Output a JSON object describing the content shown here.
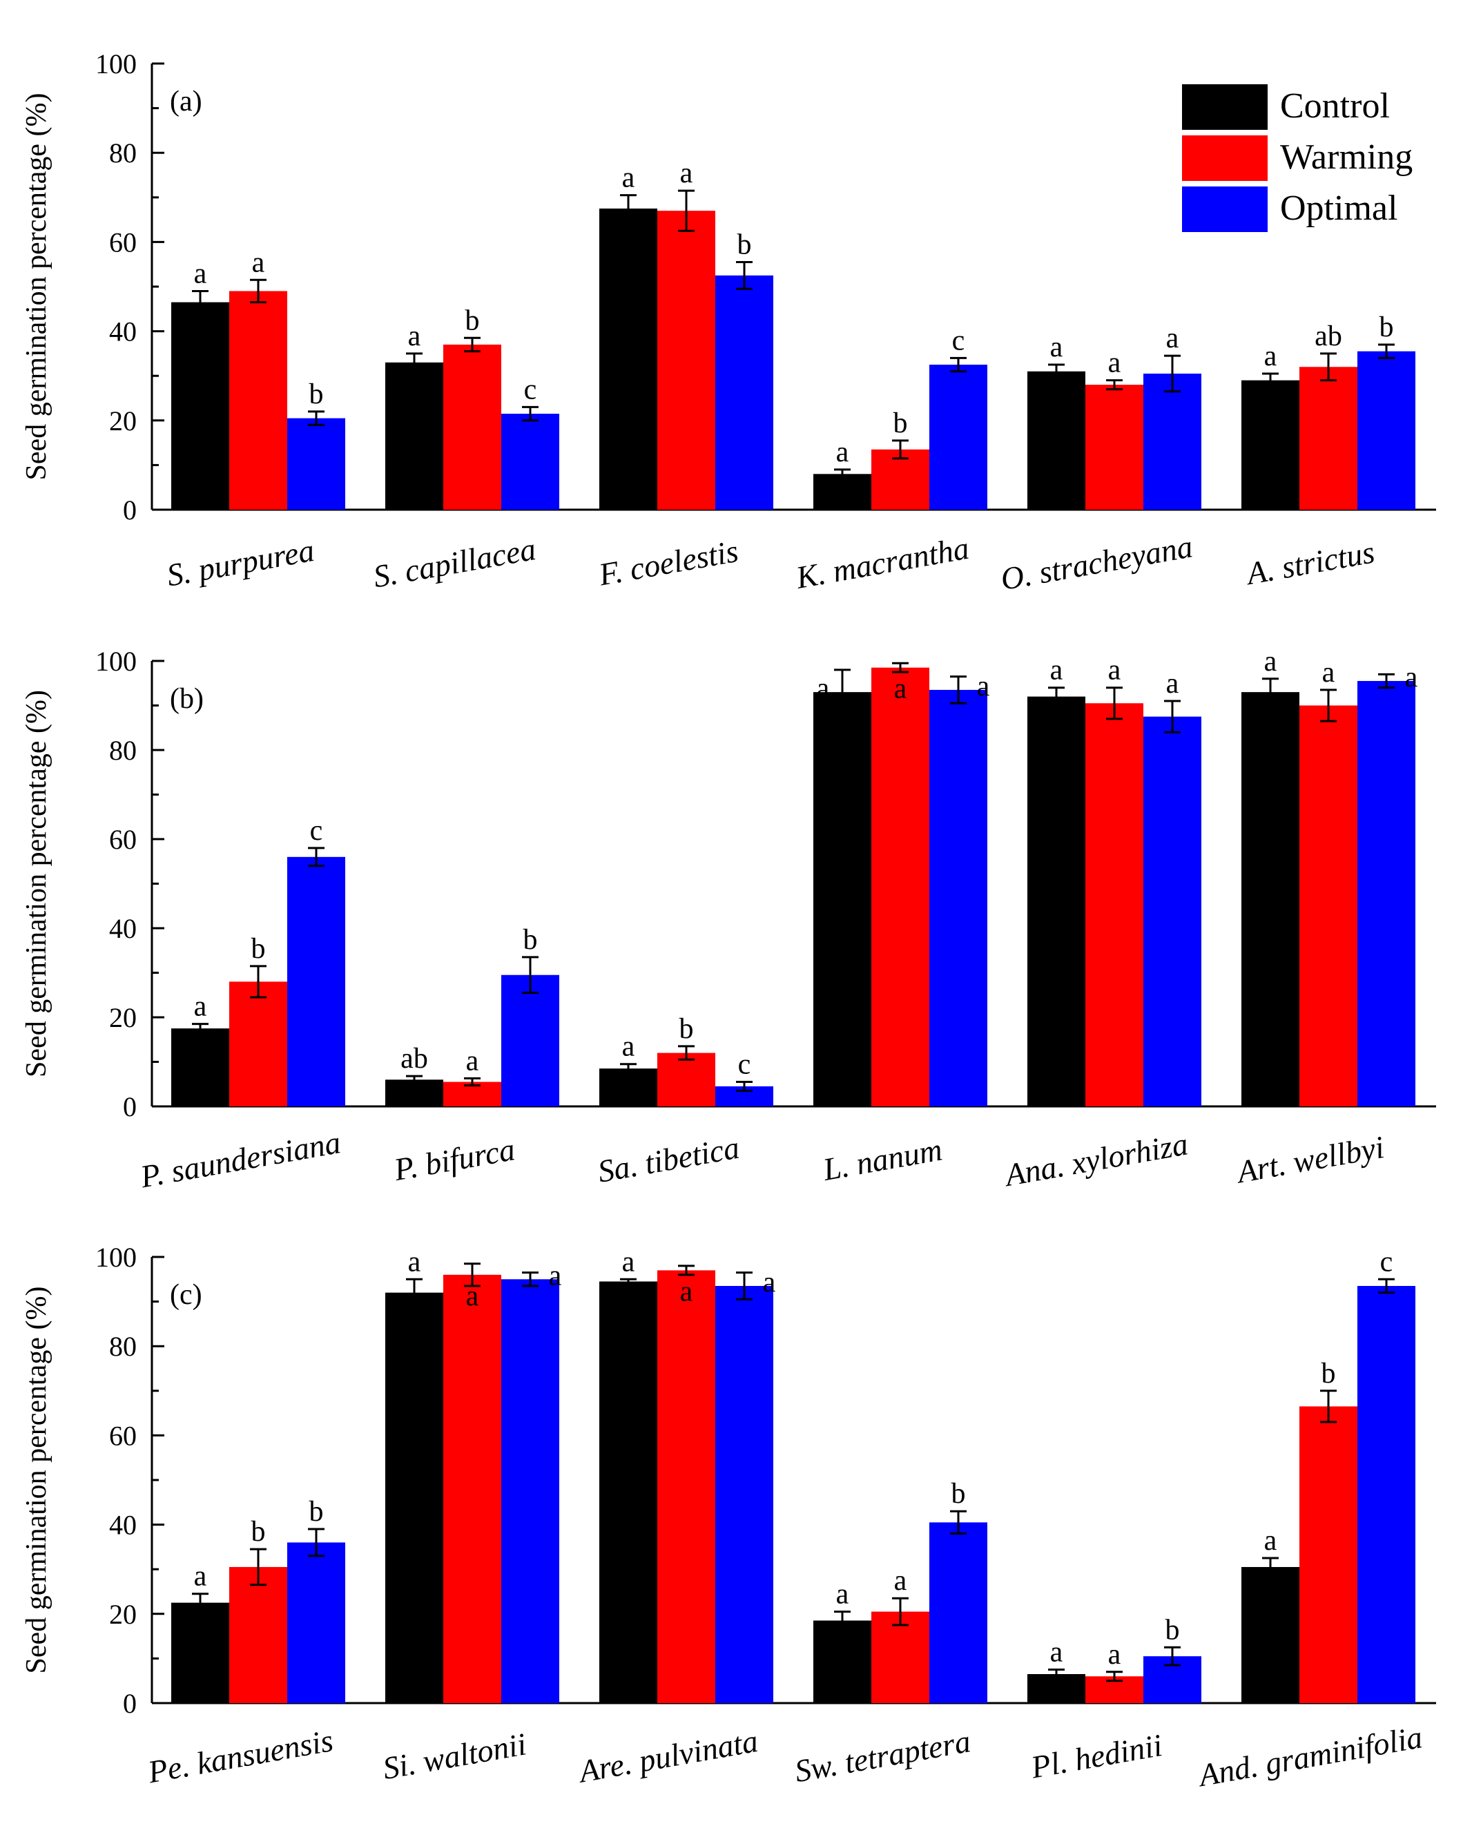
{
  "chart_data": [
    {
      "type": "bar",
      "panel_label": "(a)",
      "ylabel": "Seed germination percentage (%)",
      "ylim": [
        0,
        100
      ],
      "yticks": [
        0,
        20,
        40,
        60,
        80,
        100
      ],
      "categories": [
        "S. purpurea",
        "S. capillacea",
        "F. coelestis",
        "K. macrantha",
        "O. stracheyana",
        "A. strictus"
      ],
      "series": [
        {
          "name": "Control",
          "color": "#000000",
          "values": [
            46.5,
            33,
            67.5,
            8,
            31,
            29
          ],
          "errors": [
            2.5,
            2,
            3,
            1,
            1.5,
            1.5
          ],
          "letters": [
            "a",
            "a",
            "a",
            "a",
            "a",
            "a"
          ]
        },
        {
          "name": "Warming",
          "color": "#ff0000",
          "values": [
            49,
            37,
            67,
            13.5,
            28,
            32
          ],
          "errors": [
            2.5,
            1.5,
            4.5,
            2,
            1,
            3
          ],
          "letters": [
            "a",
            "b",
            "a",
            "b",
            "a",
            "ab"
          ]
        },
        {
          "name": "Optimal",
          "color": "#0000ff",
          "values": [
            20.5,
            21.5,
            52.5,
            32.5,
            30.5,
            35.5
          ],
          "errors": [
            1.5,
            1.5,
            3,
            1.5,
            4,
            1.5
          ],
          "letters": [
            "b",
            "c",
            "b",
            "c",
            "a",
            "b"
          ]
        }
      ],
      "legend": {
        "placement": "top-right",
        "entries": [
          "Control",
          "Warming",
          "Optimal"
        ]
      }
    },
    {
      "type": "bar",
      "panel_label": "(b)",
      "ylabel": "Seed germination percentage (%)",
      "ylim": [
        0,
        100
      ],
      "yticks": [
        0,
        20,
        40,
        60,
        80,
        100
      ],
      "categories": [
        "P. saundersiana",
        "P. bifurca",
        "Sa. tibetica",
        "L. nanum",
        "Ana. xylorhiza",
        "Art. wellbyi"
      ],
      "series": [
        {
          "name": "Control",
          "color": "#000000",
          "values": [
            17.5,
            6,
            8.5,
            93,
            92,
            93
          ],
          "errors": [
            1,
            0.8,
            1,
            5,
            2,
            3
          ],
          "letters": [
            "a",
            "ab",
            "a",
            "a",
            "a",
            "a"
          ]
        },
        {
          "name": "Warming",
          "color": "#ff0000",
          "values": [
            28,
            5.5,
            12,
            98.5,
            90.5,
            90
          ],
          "errors": [
            3.5,
            0.8,
            1.5,
            1,
            3.5,
            3.5
          ],
          "letters": [
            "b",
            "a",
            "b",
            "a",
            "a",
            "a"
          ]
        },
        {
          "name": "Optimal",
          "color": "#0000ff",
          "values": [
            56,
            29.5,
            4.5,
            93.5,
            87.5,
            95.5
          ],
          "errors": [
            2,
            4,
            1,
            3,
            3.5,
            1.5
          ],
          "letters": [
            "c",
            "b",
            "c",
            "a",
            "a",
            "a"
          ]
        }
      ]
    },
    {
      "type": "bar",
      "panel_label": "(c)",
      "ylabel": "Seed germination percentage (%)",
      "ylim": [
        0,
        100
      ],
      "yticks": [
        0,
        20,
        40,
        60,
        80,
        100
      ],
      "categories": [
        "Pe. kansuensis",
        "Si. waltonii",
        "Are. pulvinata",
        "Sw. tetraptera",
        "Pl. hedinii",
        "And. graminifolia"
      ],
      "series": [
        {
          "name": "Control",
          "color": "#000000",
          "values": [
            22.5,
            92,
            94.5,
            18.5,
            6.5,
            30.5
          ],
          "errors": [
            2,
            3,
            0.5,
            2,
            1,
            2
          ],
          "letters": [
            "a",
            "a",
            "a",
            "a",
            "a",
            "a"
          ]
        },
        {
          "name": "Warming",
          "color": "#ff0000",
          "values": [
            30.5,
            96,
            97,
            20.5,
            6,
            66.5
          ],
          "errors": [
            4,
            2.5,
            1,
            3,
            1,
            3.5
          ],
          "letters": [
            "b",
            "a",
            "a",
            "a",
            "a",
            "b"
          ]
        },
        {
          "name": "Optimal",
          "color": "#0000ff",
          "values": [
            36,
            95,
            93.5,
            40.5,
            10.5,
            93.5
          ],
          "errors": [
            3,
            1.5,
            3,
            2.5,
            2,
            1.5
          ],
          "letters": [
            "b",
            "a",
            "a",
            "b",
            "b",
            "c"
          ]
        }
      ]
    }
  ]
}
